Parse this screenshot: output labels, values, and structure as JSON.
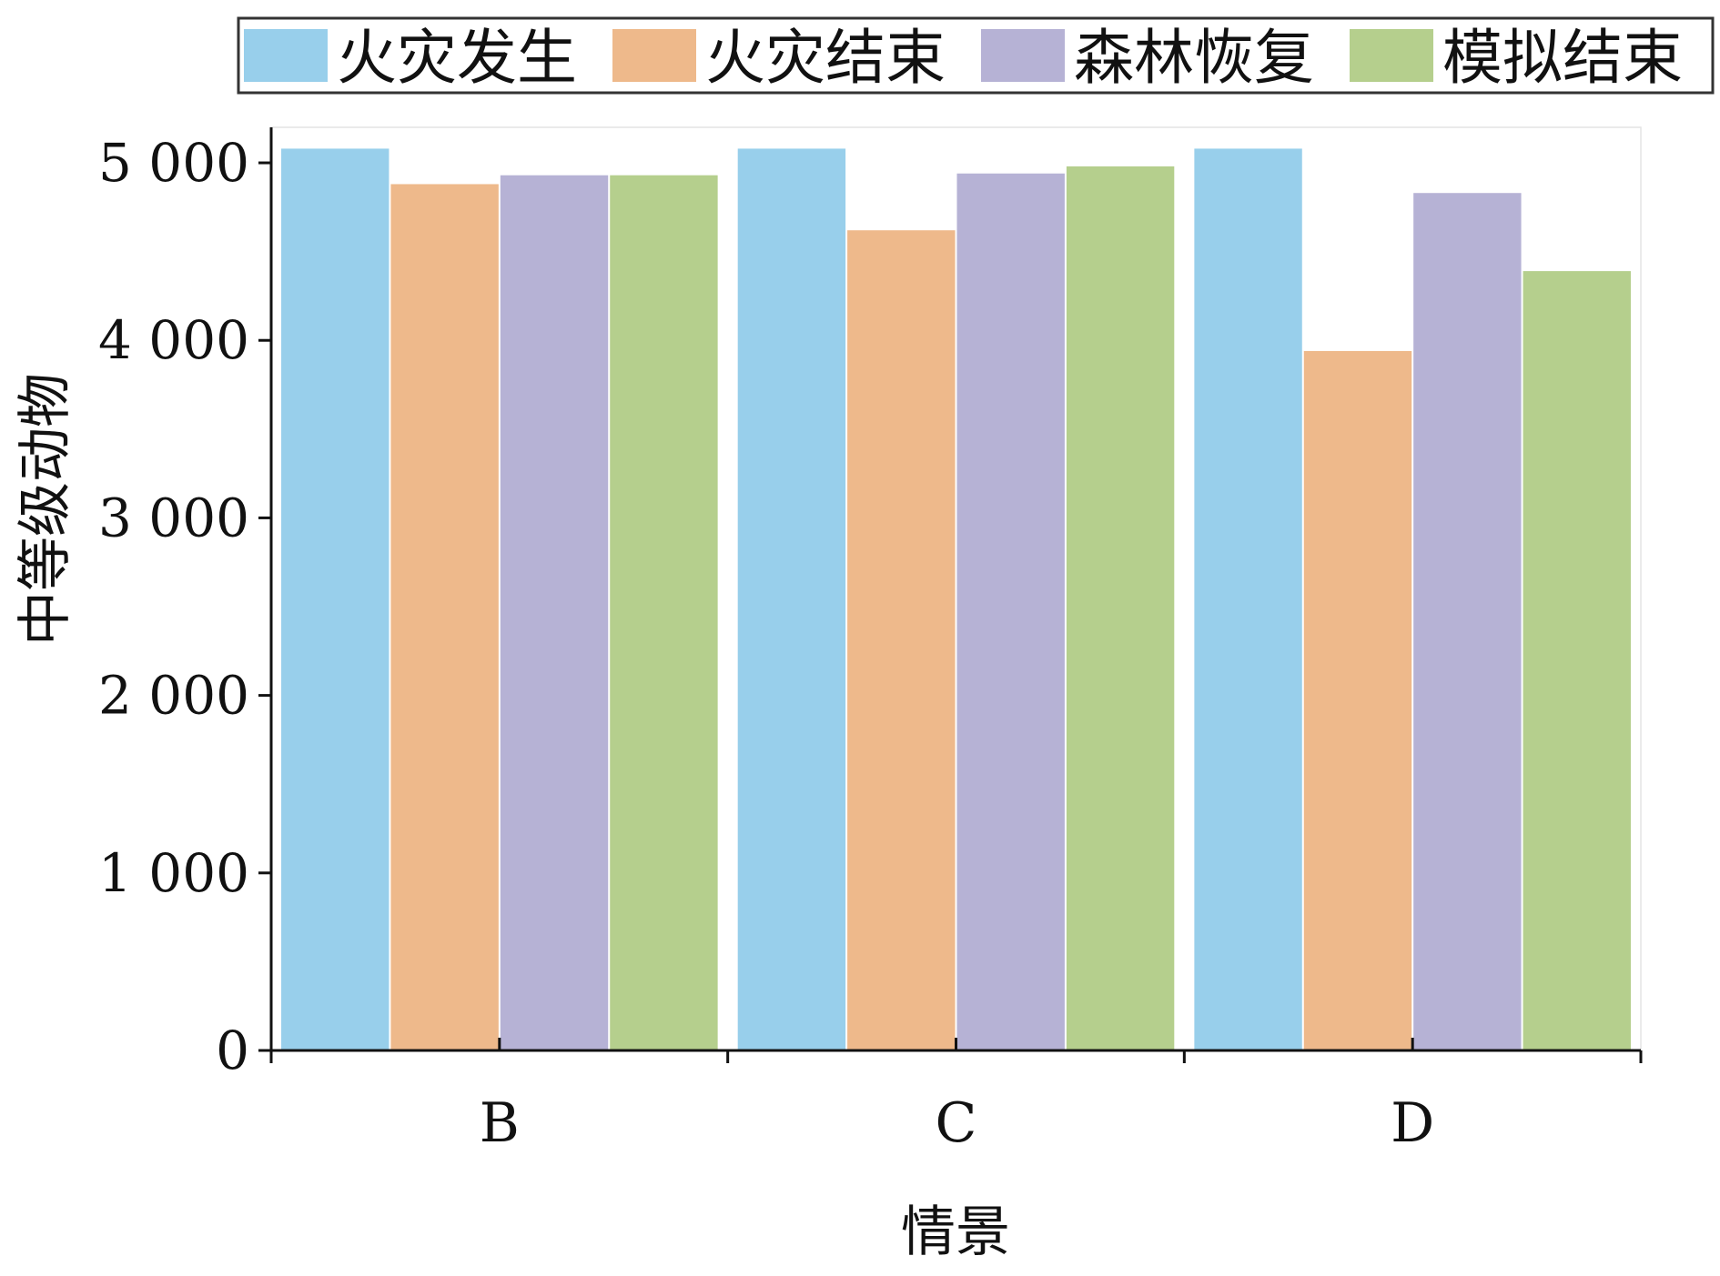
{
  "chart_data": {
    "type": "bar",
    "title": "",
    "xlabel": "情景",
    "ylabel": "中等级动物",
    "categories": [
      "B",
      "C",
      "D"
    ],
    "ylim": [
      0,
      5200
    ],
    "yticks": [
      0,
      1000,
      2000,
      3000,
      4000,
      5000
    ],
    "ytick_labels": [
      "0",
      "1 000",
      "2 000",
      "3 000",
      "4 000",
      "5 000"
    ],
    "legend_position": "top",
    "grid": false,
    "series": [
      {
        "name": "火灾发生",
        "color": "#98cfeb",
        "values": [
          5080,
          5080,
          5080
        ]
      },
      {
        "name": "火灾结束",
        "color": "#eeb98b",
        "values": [
          4880,
          4620,
          3940
        ]
      },
      {
        "name": "森林恢复",
        "color": "#b6b2d5",
        "values": [
          4930,
          4940,
          4830
        ]
      },
      {
        "name": "模拟结束",
        "color": "#b5cf8d",
        "values": [
          4930,
          4980,
          4390
        ]
      }
    ]
  }
}
